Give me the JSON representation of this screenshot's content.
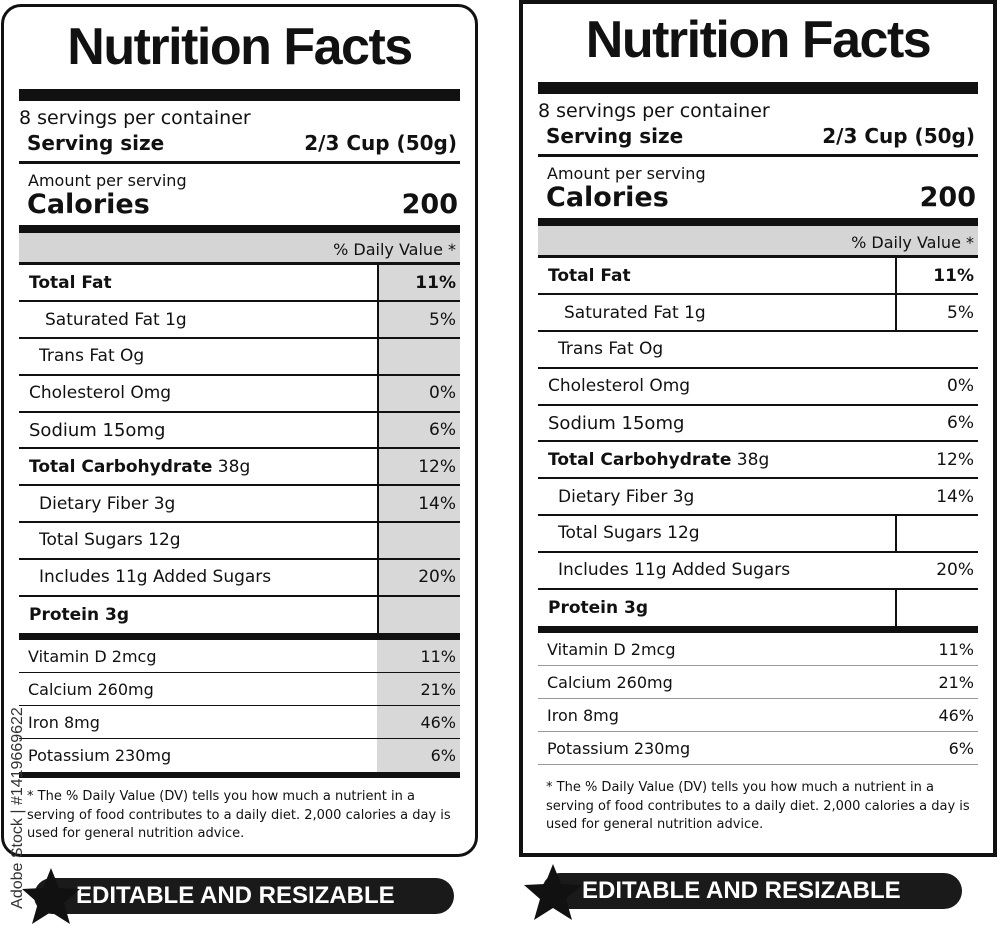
{
  "label": {
    "title": "Nutrition Facts",
    "servings": "8 servings per container",
    "serving_size_label": "Serving size",
    "serving_size_value": "2/3 Cup (50g)",
    "amount_label": "Amount per serving",
    "calories_label": "Calories",
    "calories_value": "200",
    "dv_header": "% Daily Value *",
    "nutrients": [
      {
        "name": "Total Fat",
        "amount": "",
        "pct": "11%"
      },
      {
        "name": "Saturated Fat 1g",
        "amount": "",
        "pct": "5%"
      },
      {
        "name": "Trans Fat Og",
        "amount": "",
        "pct": ""
      },
      {
        "name": "Cholesterol Omg",
        "amount": "",
        "pct": "0%"
      },
      {
        "name": "Sodium 15omg",
        "amount": "",
        "pct": "6%"
      },
      {
        "name": "Total Carbohydrate",
        "amount": " 38g",
        "pct": "12%"
      },
      {
        "name": "Dietary Fiber 3g",
        "amount": "",
        "pct": "14%"
      },
      {
        "name": "Total Sugars 12g",
        "amount": "",
        "pct": ""
      },
      {
        "name": "Includes 11g Added Sugars",
        "amount": "",
        "pct": "20%"
      },
      {
        "name": "Protein 3g",
        "amount": "",
        "pct": ""
      }
    ],
    "vitamins": [
      {
        "name": "Vitamin D 2mcg",
        "pct": "11%"
      },
      {
        "name": "Calcium 260mg",
        "pct": "21%"
      },
      {
        "name": "Iron 8mg",
        "pct": "46%"
      },
      {
        "name": "Potassium 230mg",
        "pct": "6%"
      }
    ],
    "footnote": "* The % Daily Value (DV) tells you how much a nutrient in a serving of food contributes to a daily diet. 2,000 calories a day is used for general nutrition advice."
  },
  "banner_text": "EDITABLE AND RESIZABLE",
  "watermark": "Adobe Stock | #1419669622",
  "colors": {
    "ink": "#111111",
    "shade": "#d8d8d8",
    "banner": "#1a1a1a"
  }
}
